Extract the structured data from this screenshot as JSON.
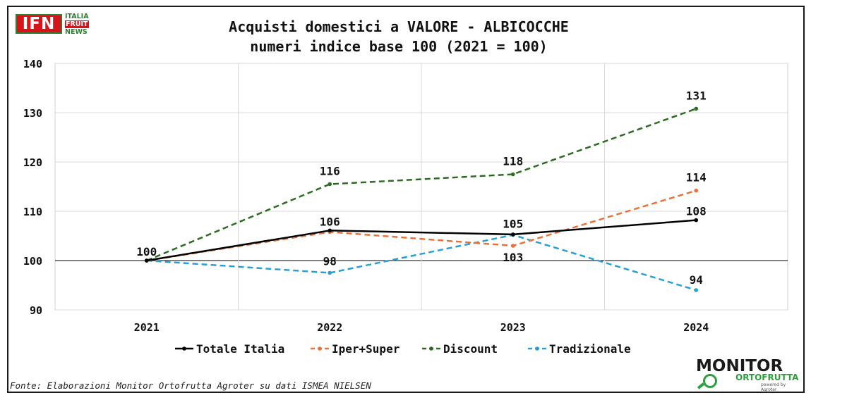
{
  "logos": {
    "ifn": {
      "main": "IFN",
      "lines": [
        "ITALIA",
        "FRUIT",
        "NEWS"
      ]
    },
    "monitor": {
      "main": "MONITOR",
      "sub": "ORTOFRUTTA",
      "powered": "powered by Agroter"
    }
  },
  "source": "Fonte: Elaborazioni Monitor Ortofrutta Agroter su dati ISMEA NIELSEN",
  "chart_data": {
    "type": "line",
    "title": "Acquisti domestici a VALORE - ALBICOCCHE",
    "subtitle": "numeri indice base 100 (2021 = 100)",
    "xlabel": "",
    "ylabel": "",
    "categories": [
      "2021",
      "2022",
      "2023",
      "2024"
    ],
    "ylim": [
      90,
      140
    ],
    "yticks": [
      90,
      100,
      110,
      120,
      130,
      140
    ],
    "grid": true,
    "legend_position": "bottom",
    "series": [
      {
        "name": "Totale Italia",
        "values": [
          100,
          106.1,
          105.3,
          108.2
        ],
        "labels": [
          "100",
          "106",
          "",
          "108"
        ],
        "color": "#000000",
        "dash": "solid"
      },
      {
        "name": "Iper+Super",
        "values": [
          100,
          105.8,
          103.0,
          114.2
        ],
        "labels": [
          "",
          "",
          "103",
          "114"
        ],
        "color": "#e8733a",
        "dash": "dashed"
      },
      {
        "name": "Discount",
        "values": [
          100,
          115.5,
          117.5,
          130.8
        ],
        "labels": [
          "",
          "116",
          "118",
          "131"
        ],
        "color": "#2e6b22",
        "dash": "dashed"
      },
      {
        "name": "Tradizionale",
        "values": [
          100,
          97.5,
          105.2,
          94.0
        ],
        "labels": [
          "",
          "98",
          "105",
          "94"
        ],
        "color": "#2a9fd6",
        "dash": "dashed"
      }
    ]
  }
}
